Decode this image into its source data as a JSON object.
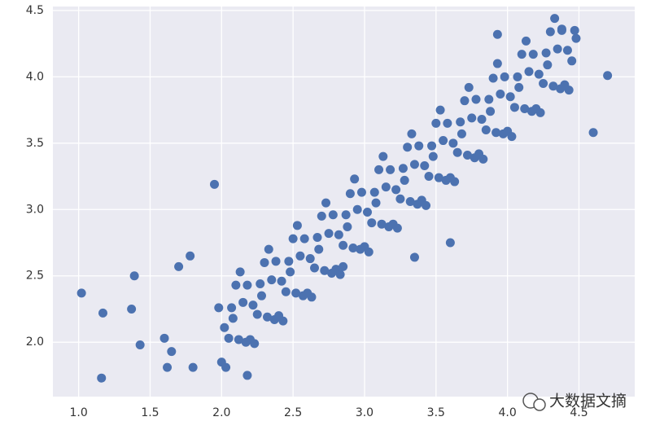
{
  "chart_data": {
    "type": "scatter",
    "color": "#4c72b0",
    "grid": true,
    "xlim": [
      0.82,
      4.89
    ],
    "ylim": [
      1.59,
      4.53
    ],
    "xticks": [
      {
        "value": 1.0,
        "label": "1.0"
      },
      {
        "value": 1.5,
        "label": "1.5"
      },
      {
        "value": 2.0,
        "label": "2.0"
      },
      {
        "value": 2.5,
        "label": "2.5"
      },
      {
        "value": 3.0,
        "label": "3.0"
      },
      {
        "value": 3.5,
        "label": "3.5"
      },
      {
        "value": 4.0,
        "label": "4.0"
      },
      {
        "value": 4.5,
        "label": "4.5"
      }
    ],
    "yticks": [
      {
        "value": 2.0,
        "label": "2.0"
      },
      {
        "value": 2.5,
        "label": "2.5"
      },
      {
        "value": 3.0,
        "label": "3.0"
      },
      {
        "value": 3.5,
        "label": "3.5"
      },
      {
        "value": 4.0,
        "label": "4.0"
      },
      {
        "value": 4.5,
        "label": "4.5"
      }
    ],
    "x": [
      2.0,
      2.02,
      1.98,
      2.05,
      2.07,
      2.03,
      2.1,
      2.12,
      2.08,
      2.15,
      2.17,
      2.13,
      2.2,
      2.22,
      2.18,
      2.25,
      2.27,
      2.23,
      2.3,
      2.32,
      2.28,
      2.35,
      2.37,
      2.33,
      2.4,
      2.42,
      2.38,
      2.45,
      2.47,
      2.43,
      2.5,
      2.52,
      2.48,
      2.55,
      2.57,
      2.53,
      2.6,
      2.62,
      2.58,
      2.65,
      2.67,
      2.63,
      2.7,
      2.72,
      2.68,
      2.75,
      2.77,
      2.73,
      2.8,
      2.82,
      2.78,
      2.85,
      2.87,
      2.83,
      2.9,
      2.92,
      2.88,
      2.95,
      2.97,
      2.93,
      3.0,
      3.02,
      2.98,
      3.05,
      3.07,
      3.03,
      3.1,
      3.12,
      3.08,
      3.15,
      3.17,
      3.13,
      3.2,
      3.22,
      3.18,
      3.25,
      3.27,
      3.23,
      3.3,
      3.32,
      3.28,
      3.35,
      3.37,
      3.33,
      3.4,
      3.42,
      3.38,
      3.45,
      3.47,
      3.43,
      3.5,
      3.52,
      3.48,
      3.55,
      3.57,
      3.53,
      3.6,
      3.62,
      3.58,
      3.65,
      3.67,
      3.63,
      3.7,
      3.72,
      3.68,
      3.75,
      3.77,
      3.73,
      3.8,
      3.82,
      3.78,
      3.85,
      3.87,
      3.83,
      3.9,
      3.92,
      3.88,
      3.95,
      3.97,
      3.93,
      4.0,
      4.02,
      3.98,
      4.05,
      4.07,
      4.03,
      4.1,
      4.12,
      4.08,
      4.15,
      4.17,
      4.13,
      4.2,
      4.22,
      4.18,
      4.25,
      4.27,
      4.23,
      4.3,
      4.32,
      4.28,
      4.35,
      4.37,
      4.33,
      4.4,
      4.42,
      4.38,
      4.45,
      4.47,
      4.43,
      1.02,
      1.16,
      1.17,
      1.37,
      1.39,
      1.43,
      1.6,
      1.62,
      1.65,
      1.7,
      1.8,
      1.78,
      1.95,
      2.18,
      4.7,
      4.6,
      4.48,
      4.38,
      3.93,
      3.35,
      3.6,
      2.85
    ],
    "y": [
      1.85,
      2.11,
      2.26,
      2.03,
      2.26,
      1.81,
      2.43,
      2.02,
      2.18,
      2.3,
      2.0,
      2.53,
      2.02,
      2.28,
      2.43,
      2.21,
      2.44,
      1.99,
      2.6,
      2.19,
      2.35,
      2.47,
      2.17,
      2.7,
      2.2,
      2.46,
      2.61,
      2.38,
      2.61,
      2.16,
      2.78,
      2.37,
      2.53,
      2.65,
      2.35,
      2.88,
      2.37,
      2.63,
      2.78,
      2.56,
      2.79,
      2.34,
      2.95,
      2.54,
      2.7,
      2.82,
      2.52,
      3.05,
      2.55,
      2.81,
      2.96,
      2.73,
      2.96,
      2.51,
      3.12,
      2.71,
      2.87,
      3.0,
      2.7,
      3.23,
      2.72,
      2.98,
      3.13,
      2.9,
      3.13,
      2.68,
      3.3,
      2.89,
      3.05,
      3.17,
      2.87,
      3.4,
      2.89,
      3.15,
      3.3,
      3.08,
      3.31,
      2.86,
      3.47,
      3.06,
      3.22,
      3.34,
      3.04,
      3.57,
      3.07,
      3.33,
      3.48,
      3.25,
      3.48,
      3.03,
      3.65,
      3.24,
      3.4,
      3.52,
      3.22,
      3.75,
      3.24,
      3.5,
      3.65,
      3.43,
      3.66,
      3.21,
      3.82,
      3.41,
      3.57,
      3.69,
      3.39,
      3.92,
      3.42,
      3.68,
      3.83,
      3.6,
      3.83,
      3.38,
      3.99,
      3.58,
      3.74,
      3.87,
      3.57,
      4.1,
      3.59,
      3.85,
      4.0,
      3.77,
      4.0,
      3.55,
      4.17,
      3.76,
      3.92,
      4.04,
      3.74,
      4.27,
      3.76,
      4.02,
      4.17,
      3.95,
      4.18,
      3.73,
      4.34,
      3.93,
      4.09,
      4.21,
      3.91,
      4.44,
      3.94,
      4.2,
      4.35,
      4.12,
      4.35,
      3.9,
      2.37,
      1.73,
      2.22,
      2.25,
      2.5,
      1.98,
      2.03,
      1.81,
      1.93,
      2.57,
      1.81,
      2.65,
      3.19,
      1.75,
      4.01,
      3.58,
      4.29,
      4.36,
      4.32,
      2.64,
      2.75,
      2.57
    ]
  },
  "watermark": "大数据文摘"
}
